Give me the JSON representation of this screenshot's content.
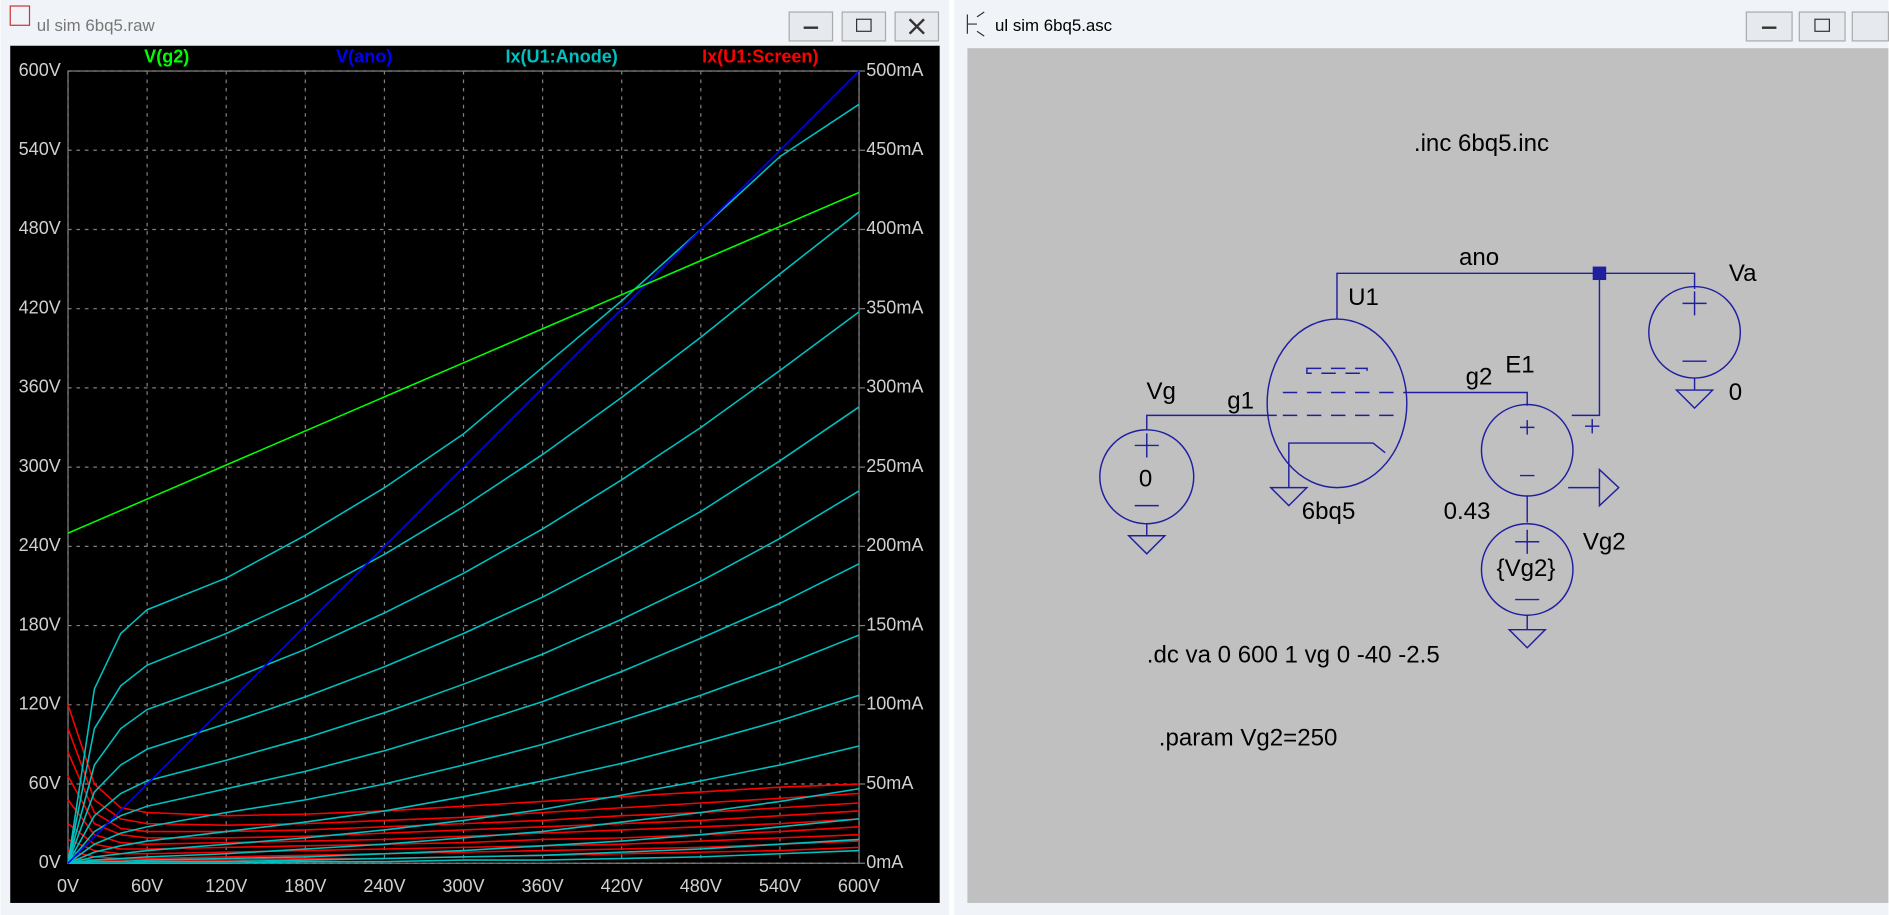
{
  "waveform_window": {
    "title": "ul sim 6bq5.raw"
  },
  "chart_data": {
    "type": "line",
    "x": [
      0,
      20,
      40,
      60,
      120,
      180,
      240,
      300,
      360,
      420,
      480,
      540,
      600
    ],
    "xlim": [
      0,
      600
    ],
    "xticks": [
      {
        "value": 0,
        "label": "0V"
      },
      {
        "value": 60,
        "label": "60V"
      },
      {
        "value": 120,
        "label": "120V"
      },
      {
        "value": 180,
        "label": "180V"
      },
      {
        "value": 240,
        "label": "240V"
      },
      {
        "value": 300,
        "label": "300V"
      },
      {
        "value": 360,
        "label": "360V"
      },
      {
        "value": 420,
        "label": "420V"
      },
      {
        "value": 480,
        "label": "480V"
      },
      {
        "value": 540,
        "label": "540V"
      },
      {
        "value": 600,
        "label": "600V"
      }
    ],
    "ylim": [
      0,
      600
    ],
    "yticks": [
      {
        "value": 0,
        "label": "0V"
      },
      {
        "value": 60,
        "label": "60V"
      },
      {
        "value": 120,
        "label": "120V"
      },
      {
        "value": 180,
        "label": "180V"
      },
      {
        "value": 240,
        "label": "240V"
      },
      {
        "value": 300,
        "label": "300V"
      },
      {
        "value": 360,
        "label": "360V"
      },
      {
        "value": 420,
        "label": "420V"
      },
      {
        "value": 480,
        "label": "480V"
      },
      {
        "value": 540,
        "label": "540V"
      },
      {
        "value": 600,
        "label": "600V"
      }
    ],
    "y2lim": [
      0,
      500
    ],
    "y2ticks": [
      {
        "value": 0,
        "label": "0mA"
      },
      {
        "value": 50,
        "label": "50mA"
      },
      {
        "value": 100,
        "label": "100mA"
      },
      {
        "value": 150,
        "label": "150mA"
      },
      {
        "value": 200,
        "label": "200mA"
      },
      {
        "value": 250,
        "label": "250mA"
      },
      {
        "value": 300,
        "label": "300mA"
      },
      {
        "value": 350,
        "label": "350mA"
      },
      {
        "value": 400,
        "label": "400mA"
      },
      {
        "value": 450,
        "label": "450mA"
      },
      {
        "value": 500,
        "label": "500mA"
      }
    ],
    "grid": true,
    "series": [
      {
        "name": "V(g2)",
        "color": "#00ff00",
        "axis": "y",
        "values": [
          250,
          258.6,
          267.2,
          275.8,
          301.6,
          327.4,
          353.2,
          379,
          404.8,
          430.6,
          456.4,
          482.2,
          508
        ]
      },
      {
        "name": "V(ano)",
        "color": "#0000ff",
        "axis": "y",
        "values": [
          0,
          20,
          40,
          60,
          120,
          180,
          240,
          300,
          360,
          420,
          480,
          540,
          600
        ]
      },
      {
        "name": "Ix(U1:Anode)",
        "color": "#00c0c0",
        "axis": "y2",
        "values": [
          [
            0,
            110,
            145,
            160,
            180,
            207,
            237,
            271,
            313,
            355,
            400,
            446,
            479
          ],
          [
            0,
            85,
            112,
            125,
            145,
            168,
            195,
            225,
            258,
            294,
            332,
            372,
            411
          ],
          [
            0,
            62,
            85,
            97,
            115,
            135,
            158,
            183,
            211,
            242,
            275,
            311,
            348
          ],
          [
            0,
            45,
            62,
            72,
            88,
            105,
            124,
            145,
            168,
            194,
            222,
            254,
            288
          ],
          [
            0,
            30,
            44,
            52,
            65,
            79,
            95,
            113,
            132,
            154,
            178,
            205,
            235
          ],
          [
            0,
            20,
            30,
            36,
            47,
            58,
            71,
            86,
            102,
            121,
            142,
            164,
            189
          ],
          [
            0,
            12,
            19,
            23,
            32,
            40,
            50,
            62,
            75,
            90,
            106,
            124,
            144
          ],
          [
            0,
            7,
            11,
            14,
            20,
            26,
            33,
            42,
            52,
            63,
            76,
            90,
            106
          ],
          [
            0,
            4,
            6,
            8,
            12,
            16,
            21,
            27,
            34,
            43,
            52,
            62,
            74
          ],
          [
            0,
            2,
            3,
            4,
            6,
            9,
            12,
            16,
            20,
            26,
            32,
            39,
            47
          ],
          [
            0,
            1,
            1,
            2,
            3,
            4,
            6,
            8,
            11,
            14,
            18,
            23,
            28
          ],
          [
            0,
            0,
            0,
            1,
            1,
            2,
            3,
            4,
            5,
            7,
            9,
            12,
            15
          ],
          [
            0,
            0,
            0,
            0,
            0,
            1,
            1,
            2,
            2,
            3,
            4,
            6,
            8
          ]
        ]
      },
      {
        "name": "Ix(U1:Screen)",
        "color": "#ff0000",
        "axis": "y2",
        "values": [
          [
            100,
            50,
            35,
            32,
            30,
            31,
            33,
            36,
            39,
            42,
            45,
            48,
            50
          ],
          [
            85,
            40,
            28,
            25,
            24,
            25,
            27,
            29,
            32,
            35,
            38,
            41,
            44
          ],
          [
            70,
            32,
            22,
            20,
            20,
            21,
            23,
            25,
            27,
            30,
            32,
            35,
            38
          ],
          [
            55,
            25,
            18,
            16,
            16,
            17,
            19,
            21,
            23,
            25,
            27,
            30,
            33
          ],
          [
            40,
            18,
            13,
            12,
            13,
            14,
            15,
            17,
            19,
            21,
            23,
            25,
            28
          ],
          [
            25,
            12,
            9,
            9,
            10,
            11,
            12,
            13,
            15,
            16,
            18,
            20,
            23
          ],
          [
            15,
            8,
            6,
            6,
            7,
            8,
            9,
            10,
            11,
            12,
            14,
            16,
            18
          ],
          [
            8,
            4,
            3,
            3,
            4,
            5,
            6,
            7,
            8,
            9,
            10,
            12,
            14
          ],
          [
            3,
            2,
            2,
            2,
            2,
            3,
            3,
            4,
            5,
            6,
            7,
            8,
            10
          ]
        ]
      }
    ]
  },
  "schematic_window": {
    "title": "ul sim 6bq5.asc",
    "labels": [
      ".inc 6bq5.inc",
      "ano",
      "U1",
      "Va",
      "0",
      "Vg",
      "g1",
      "g2",
      "E1",
      "0",
      "6bq5",
      "0.43",
      "Vg2",
      "{Vg2}",
      ".dc va 0 600 1 vg 0 -40 -2.5",
      ".param Vg2=250"
    ]
  }
}
